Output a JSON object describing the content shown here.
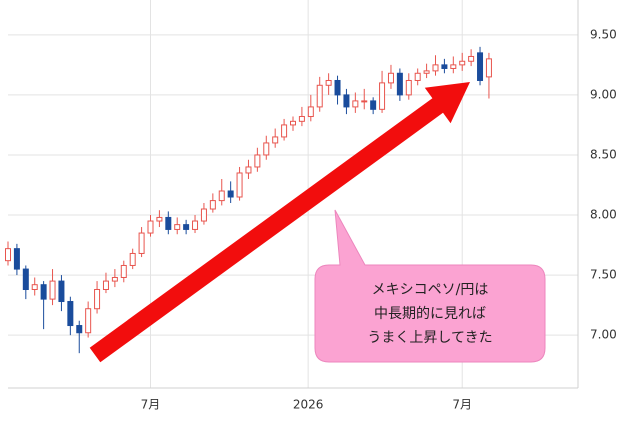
{
  "chart_data": {
    "type": "candlestick",
    "x": [
      0,
      1,
      2,
      3,
      4,
      5,
      6,
      7,
      8,
      9,
      10,
      11,
      12,
      13,
      14,
      15,
      16,
      17,
      18,
      19,
      20,
      21,
      22,
      23,
      24,
      25,
      26,
      27,
      28,
      29,
      30,
      31,
      32,
      33,
      34,
      35,
      36,
      37,
      38,
      39,
      40,
      41,
      42,
      43,
      44,
      45,
      46,
      47,
      48,
      49,
      50,
      51,
      52,
      53,
      54
    ],
    "open": [
      7.62,
      7.72,
      7.55,
      7.38,
      7.42,
      7.3,
      7.45,
      7.28,
      7.08,
      7.02,
      7.22,
      7.38,
      7.45,
      7.48,
      7.58,
      7.68,
      7.85,
      7.95,
      7.98,
      7.88,
      7.92,
      7.88,
      7.95,
      8.05,
      8.12,
      8.2,
      8.15,
      8.35,
      8.4,
      8.5,
      8.6,
      8.65,
      8.75,
      8.78,
      8.82,
      8.9,
      9.08,
      9.12,
      9.0,
      8.9,
      8.95,
      8.95,
      8.88,
      9.1,
      9.18,
      9.0,
      9.12,
      9.18,
      9.2,
      9.25,
      9.22,
      9.25,
      9.28,
      9.35,
      9.15
    ],
    "high": [
      7.78,
      7.76,
      7.58,
      7.48,
      7.45,
      7.55,
      7.5,
      7.32,
      7.12,
      7.28,
      7.45,
      7.52,
      7.55,
      7.62,
      7.72,
      7.9,
      8.0,
      8.04,
      8.03,
      7.98,
      7.96,
      8.0,
      8.1,
      8.18,
      8.3,
      8.28,
      8.4,
      8.46,
      8.56,
      8.66,
      8.72,
      8.8,
      8.82,
      8.9,
      9.0,
      9.15,
      9.18,
      9.16,
      9.05,
      9.02,
      9.05,
      8.98,
      9.2,
      9.25,
      9.22,
      9.18,
      9.22,
      9.26,
      9.33,
      9.3,
      9.32,
      9.35,
      9.38,
      9.4,
      9.35
    ],
    "low": [
      7.58,
      7.5,
      7.3,
      7.33,
      7.05,
      7.25,
      7.2,
      7.0,
      6.85,
      6.98,
      7.18,
      7.35,
      7.4,
      7.44,
      7.55,
      7.65,
      7.82,
      7.9,
      7.84,
      7.84,
      7.84,
      7.85,
      7.92,
      8.02,
      8.08,
      8.1,
      8.12,
      8.3,
      8.36,
      8.46,
      8.56,
      8.62,
      8.7,
      8.74,
      8.78,
      8.86,
      9.0,
      8.92,
      8.84,
      8.85,
      8.88,
      8.84,
      8.85,
      9.05,
      8.95,
      8.96,
      9.08,
      9.14,
      9.16,
      9.18,
      9.18,
      9.2,
      9.24,
      9.08,
      8.97
    ],
    "close": [
      7.72,
      7.55,
      7.38,
      7.42,
      7.3,
      7.45,
      7.28,
      7.08,
      7.02,
      7.22,
      7.38,
      7.45,
      7.48,
      7.58,
      7.68,
      7.85,
      7.95,
      7.98,
      7.88,
      7.92,
      7.88,
      7.95,
      8.05,
      8.12,
      8.2,
      8.15,
      8.35,
      8.4,
      8.5,
      8.6,
      8.65,
      8.75,
      8.78,
      8.82,
      8.9,
      9.08,
      9.12,
      9.0,
      8.9,
      8.95,
      8.95,
      8.88,
      9.1,
      9.18,
      9.0,
      9.12,
      9.18,
      9.2,
      9.25,
      9.22,
      9.25,
      9.28,
      9.32,
      9.12,
      9.3
    ],
    "up_color": "#e8554e",
    "down_color": "#1a4c9c",
    "xlim": [
      0,
      64
    ],
    "xticks": [
      {
        "value": 16,
        "label": "7月"
      },
      {
        "value": 33.7,
        "label": "2026"
      },
      {
        "value": 51,
        "label": "7月"
      }
    ],
    "ylim": [
      6.56,
      9.79
    ],
    "yticks": [
      {
        "value": 7.0,
        "label": "7.00"
      },
      {
        "value": 7.5,
        "label": "7.50"
      },
      {
        "value": 8.0,
        "label": "8.00"
      },
      {
        "value": 8.5,
        "label": "8.50"
      },
      {
        "value": 9.0,
        "label": "9.00"
      },
      {
        "value": 9.5,
        "label": "9.50"
      }
    ],
    "grid": true,
    "annotation": [
      "メキシコペソ/円は",
      "中長期的に見れば",
      "うまく上昇してきた"
    ]
  }
}
